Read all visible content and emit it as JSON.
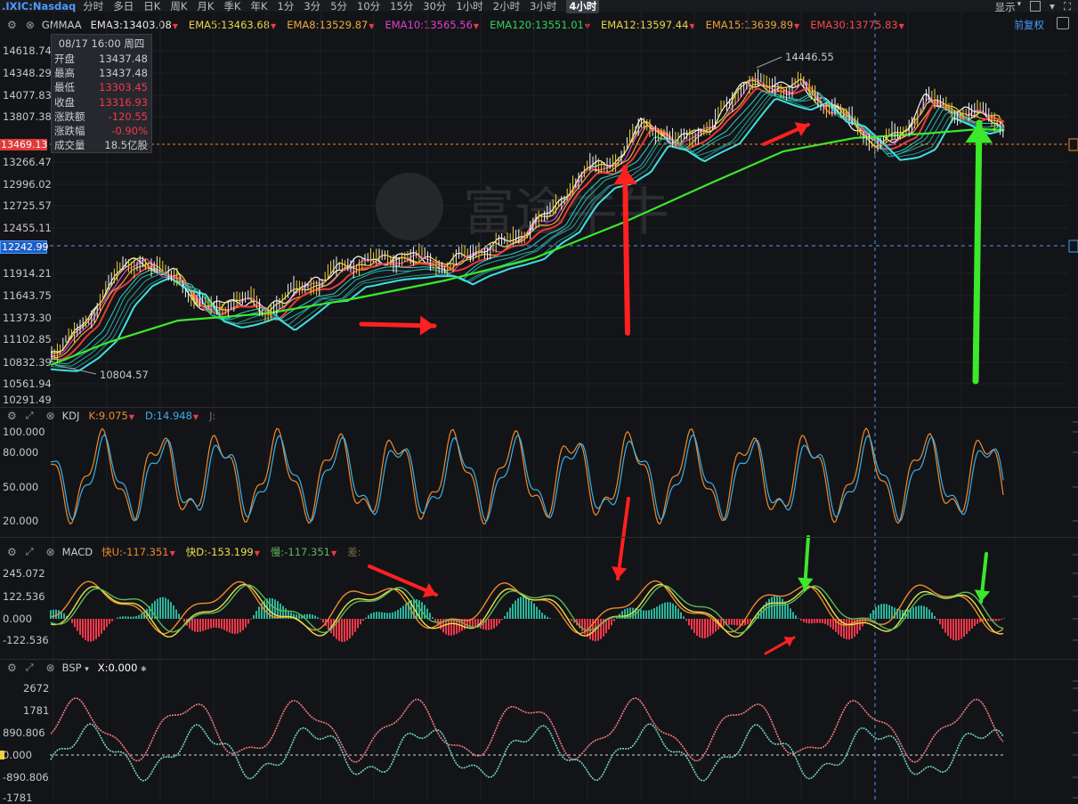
{
  "toolbar": {
    "symbol": ".IXIC:Nasdaq",
    "timeframes": [
      "分时",
      "多日",
      "日K",
      "周K",
      "月K",
      "季K",
      "年K",
      "1分",
      "3分",
      "5分",
      "10分",
      "15分",
      "30分",
      "1小时",
      "2小时",
      "3小时",
      "4小时"
    ],
    "active_timeframe": "4小时",
    "display_label": "显示",
    "adjust_label": "前复权"
  },
  "main_panel": {
    "indicator_name": "GMMAA",
    "emas": [
      {
        "label": "EMA3:13403.08",
        "color": "#e8e8e8"
      },
      {
        "label": "EMA5:13463.68",
        "color": "#e8d44d"
      },
      {
        "label": "EMA8:13529.87",
        "color": "#f0a93c"
      },
      {
        "label": "EMA10:13565.56",
        "color": "#e040d0"
      },
      {
        "label": "EMA120:13551.01",
        "color": "#2fd35a"
      },
      {
        "label": "EMA12:13597.44",
        "color": "#e8d44d"
      },
      {
        "label": "EMA15:13639.89",
        "color": "#e8a23c"
      },
      {
        "label": "EMA30:13775.83",
        "color": "#f24b4b"
      }
    ],
    "y_ticks": [
      "14618.74",
      "14348.29",
      "14077.83",
      "13807.38",
      "13266.47",
      "12996.02",
      "12725.57",
      "12455.11",
      "11914.21",
      "11643.75",
      "11373.30",
      "11102.85",
      "10832.39",
      "10561.94",
      "10291.49"
    ],
    "last_price_tag": "13469.13",
    "crosshair_price_tag": "12242.99",
    "high_label": "14446.55",
    "low_label": "10804.57",
    "watermark": "富途牛牛",
    "info": {
      "datetime": "08/17 16:00 周四",
      "rows": [
        {
          "k": "开盘",
          "v": "13437.48",
          "red": false
        },
        {
          "k": "最高",
          "v": "13437.48",
          "red": false
        },
        {
          "k": "最低",
          "v": "13303.45",
          "red": true
        },
        {
          "k": "收盘",
          "v": "13316.93",
          "red": true
        },
        {
          "k": "涨跌额",
          "v": "-120.55",
          "red": true
        },
        {
          "k": "涨跌幅",
          "v": "-0.90%",
          "red": true
        },
        {
          "k": "成交量",
          "v": "18.5亿股",
          "red": false
        }
      ]
    }
  },
  "kdj_panel": {
    "name": "KDJ",
    "k_label": "K:9.075",
    "d_label": "D:14.948",
    "j_label": "J:",
    "y_ticks": [
      "100.000",
      "80.000",
      "50.000",
      "20.000"
    ]
  },
  "macd_panel": {
    "name": "MACD",
    "fast_label": "快U:-117.351",
    "fastd_label": "快D:-153.199",
    "slow_label": "慢:-117.351",
    "diff_label": "差:",
    "y_ticks": [
      "245.072",
      "122.536",
      "0.000",
      "-122.536"
    ]
  },
  "bsp_panel": {
    "name": "BSP",
    "x_label": "X:0.000",
    "y_ticks": [
      "2672",
      "1781",
      "890.806",
      "0.000",
      "-890.806",
      "-1781"
    ]
  },
  "colors": {
    "background": "#131417",
    "up": "#2bb39b",
    "down": "#f5374a",
    "accent": "#4a9cff",
    "annotation_red": "#ff2020",
    "annotation_green": "#3be82b"
  }
}
